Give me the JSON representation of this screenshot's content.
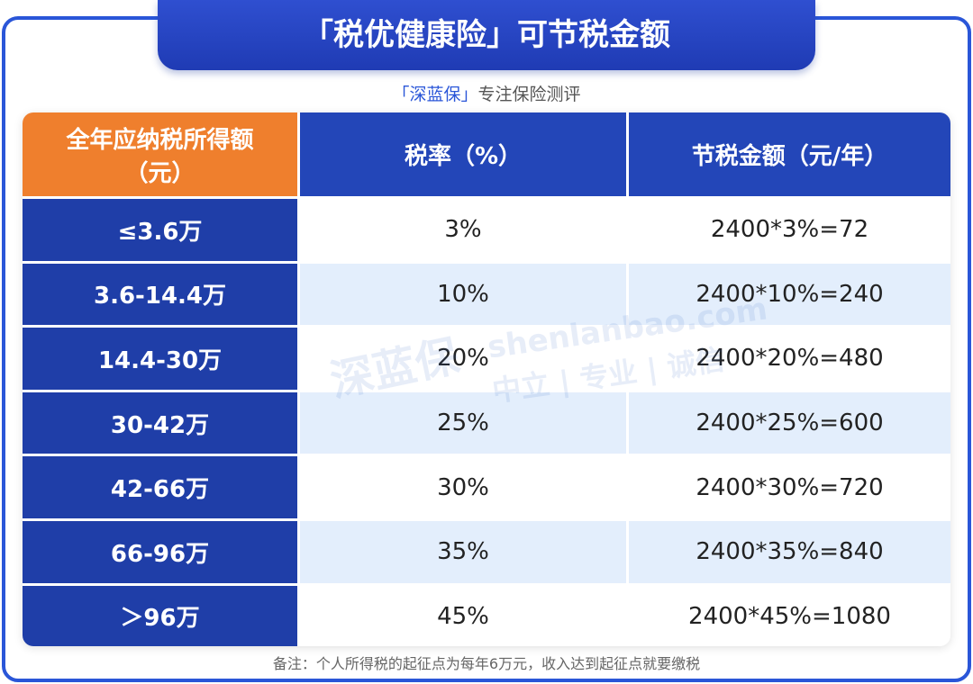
{
  "title": "「税优健康险」可节税金额",
  "subtitle": {
    "brand": "「深蓝保」",
    "tagline": "专注保险测评"
  },
  "table": {
    "header": [
      [
        "全年应纳税所得额",
        "（元）"
      ],
      "税率（%）",
      "节税金额（元/年）"
    ],
    "rows": [
      [
        "≤3.6万",
        "3%",
        "2400*3%=72"
      ],
      [
        "3.6-14.4万",
        "10%",
        "2400*10%=240"
      ],
      [
        "14.4-30万",
        "20%",
        "2400*20%=480"
      ],
      [
        "30-42万",
        "25%",
        "2400*25%=600"
      ],
      [
        "42-66万",
        "30%",
        "2400*30%=720"
      ],
      [
        "66-96万",
        "35%",
        "2400*35%=840"
      ],
      [
        "＞96万",
        "45%",
        "2400*45%=1080"
      ]
    ]
  },
  "watermark": {
    "logo": "深蓝保",
    "url": "shenlanbao.com",
    "slogan": "中立 | 专业 | 诚信"
  },
  "footnote": "备注：个人所得税的起征点为每年6万元，收入达到起征点就要缴税"
}
